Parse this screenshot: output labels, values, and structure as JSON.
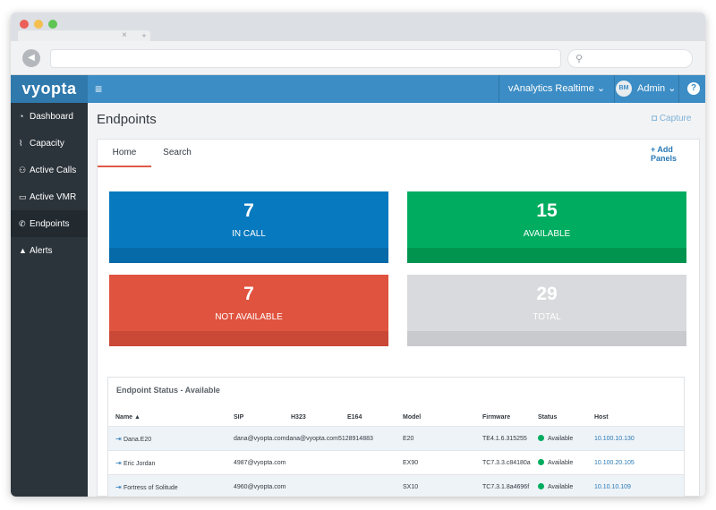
{
  "browser": {
    "traffic_lights": [
      "#ec5f59",
      "#f4bf4f",
      "#5fc454"
    ],
    "tab_close": "×",
    "new_tab": "+",
    "back_icon": "◀",
    "search_icon": "⚲"
  },
  "topnav": {
    "logo": "vyopta",
    "menu_icon": "≡",
    "realtime_label": "vAnalytics Realtime",
    "realtime_caret": "⌄",
    "avatar_initials": "BM",
    "user_label": "Admin",
    "user_caret": "⌄",
    "help_label": "?"
  },
  "sidebar": {
    "items": [
      {
        "label": "Dashboard",
        "icon": "dashboard-icon",
        "glyph": "◔"
      },
      {
        "label": "Capacity",
        "icon": "chart-icon",
        "glyph": "⌇"
      },
      {
        "label": "Active Calls",
        "icon": "users-icon",
        "glyph": "⚇"
      },
      {
        "label": "Active VMR",
        "icon": "monitor-icon",
        "glyph": "▭"
      },
      {
        "label": "Endpoints",
        "icon": "phone-icon",
        "glyph": "✆"
      },
      {
        "label": "Alerts",
        "icon": "warning-icon",
        "glyph": "▲"
      }
    ],
    "active_index": 4
  },
  "page": {
    "title": "Endpoints",
    "capture_label": "Capture",
    "capture_icon": "◘"
  },
  "panel": {
    "tabs": [
      "Home",
      "Search"
    ],
    "active_tab": "Home",
    "add_panels_label": "+ Add Panels"
  },
  "tiles": [
    {
      "value": "7",
      "label": "IN CALL",
      "color": "#0779bf",
      "foot_color": "#0669a8"
    },
    {
      "value": "15",
      "label": "AVAILABLE",
      "color": "#00ac5f",
      "foot_color": "#00944f"
    },
    {
      "value": "7",
      "label": "NOT AVAILABLE",
      "color": "#e0533f",
      "foot_color": "#c94836"
    },
    {
      "value": "29",
      "label": "TOTAL",
      "color": "#d8dadd",
      "foot_color": "#c8cacd"
    }
  ],
  "endpoint_status": {
    "title": "Endpoint Status - Available",
    "columns": [
      "Name ▲",
      "SIP",
      "H323",
      "E164",
      "Model",
      "Firmware",
      "Status",
      "Host"
    ],
    "rows": [
      {
        "name": "Dana.E20",
        "sip": "dana@vyopta.comdana@vyopta.com5128914883",
        "h323": "",
        "e164": "",
        "model": "E20",
        "firmware": "TE4.1.6.315255",
        "status": "Available",
        "host": "10.100.10.130"
      },
      {
        "name": "Eric Jordan",
        "sip": "4987@vyopta.com",
        "h323": "",
        "e164": "",
        "model": "EX90",
        "firmware": "TC7.3.3.c84180a",
        "status": "Available",
        "host": "10.100.20.105"
      },
      {
        "name": "Fortress of Solitude",
        "sip": "4960@vyopta.com",
        "h323": "",
        "e164": "",
        "model": "SX10",
        "firmware": "TC7.3.1.8a4696f",
        "status": "Available",
        "host": "10.10.10.109"
      }
    ],
    "status_color": "#00ac5f",
    "row_icon": "⇥"
  }
}
